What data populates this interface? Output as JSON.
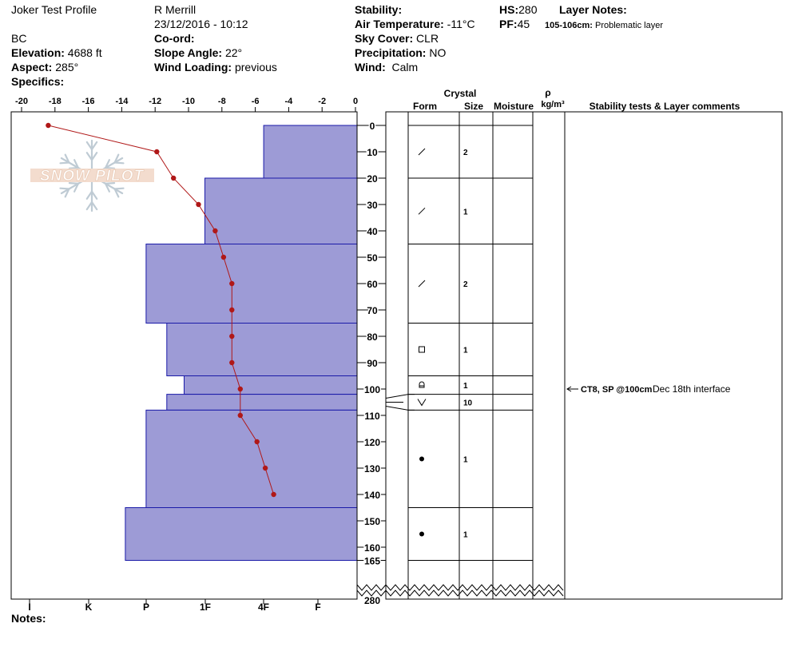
{
  "header": {
    "profile_name": "Joker Test Profile",
    "observer": "R Merrill",
    "datetime": "23/12/2016 - 10:12",
    "region": "BC",
    "elevation_label": "Elevation:",
    "elevation": "4688 ft",
    "aspect_label": "Aspect:",
    "aspect": "285°",
    "specifics_label": "Specifics:",
    "coord_label": "Co-ord:",
    "slope_label": "Slope Angle:",
    "slope": "22°",
    "wind_loading_label": "Wind Loading:",
    "wind_loading": "previous",
    "stability_label": "Stability:",
    "air_temp_label": "Air Temperature:",
    "air_temp": "-11°C",
    "sky_label": "Sky Cover:",
    "sky": "CLR",
    "precip_label": "Precipitation:",
    "precip": "NO",
    "wind_label": "Wind:",
    "wind": "Calm",
    "hs_label": "HS:",
    "hs": "280",
    "pf_label": "PF:",
    "pf": "45",
    "layer_notes_label": "Layer Notes:",
    "layer_note_depth": "105-106cm:",
    "layer_note_text": "Problematic layer"
  },
  "columns": {
    "crystal": "Crystal",
    "form": "Form",
    "size": "Size",
    "moisture": "Moisture",
    "rho": "ρ",
    "density_unit": "kg/m³",
    "stability": "Stability tests & Layer comments"
  },
  "logo_text": "SNOW PILOT",
  "notes_label": "Notes:",
  "stability_test": {
    "depth": 100,
    "label": "CT8, SP @100cm",
    "comment": "Dec 18th interface"
  },
  "chart_data": {
    "type": "snow-profile",
    "temp_axis": {
      "range": [
        -20,
        0
      ],
      "ticks": [
        -20,
        -18,
        -16,
        -14,
        -12,
        -10,
        -8,
        -6,
        -4,
        -2,
        0
      ],
      "tick_labels": [
        "-20",
        "-18",
        "-16",
        "-14",
        "-12",
        "-10",
        "-8",
        "-6",
        "-4",
        "-2",
        "0"
      ]
    },
    "depth_axis": {
      "ticks": [
        0,
        10,
        20,
        30,
        40,
        50,
        60,
        70,
        80,
        90,
        100,
        110,
        120,
        130,
        140,
        150,
        160,
        165
      ],
      "break_label": "280"
    },
    "hardness_labels": [
      "I",
      "K",
      "P",
      "1F",
      "4F",
      "F"
    ],
    "temperature_profile": [
      {
        "depth": 0,
        "temp": -18.4
      },
      {
        "depth": 10,
        "temp": -11.9
      },
      {
        "depth": 20,
        "temp": -10.9
      },
      {
        "depth": 30,
        "temp": -9.4
      },
      {
        "depth": 40,
        "temp": -8.4
      },
      {
        "depth": 50,
        "temp": -7.9
      },
      {
        "depth": 60,
        "temp": -7.4
      },
      {
        "depth": 70,
        "temp": -7.4
      },
      {
        "depth": 80,
        "temp": -7.4
      },
      {
        "depth": 90,
        "temp": -7.4
      },
      {
        "depth": 100,
        "temp": -6.9
      },
      {
        "depth": 110,
        "temp": -6.9
      },
      {
        "depth": 120,
        "temp": -5.9
      },
      {
        "depth": 130,
        "temp": -5.4
      },
      {
        "depth": 140,
        "temp": -4.9
      }
    ],
    "layers": [
      {
        "top": 0,
        "bottom": 20,
        "hardness": 0.27,
        "form": "slash",
        "size": "2"
      },
      {
        "top": 20,
        "bottom": 45,
        "hardness": 0.44,
        "form": "slash",
        "size": "1"
      },
      {
        "top": 45,
        "bottom": 75,
        "hardness": 0.61,
        "form": "slash",
        "size": "2"
      },
      {
        "top": 75,
        "bottom": 95,
        "hardness": 0.55,
        "form": "square",
        "size": "1"
      },
      {
        "top": 95,
        "bottom": 102,
        "hardness": 0.5,
        "form": "cup",
        "size": "1"
      },
      {
        "top": 102,
        "bottom": 108,
        "hardness": 0.55,
        "form": "v",
        "size": "10"
      },
      {
        "top": 108,
        "bottom": 145,
        "hardness": 0.61,
        "form": "dot",
        "size": "1"
      },
      {
        "top": 145,
        "bottom": 165,
        "hardness": 0.67,
        "form": "dot",
        "size": "1"
      }
    ]
  }
}
